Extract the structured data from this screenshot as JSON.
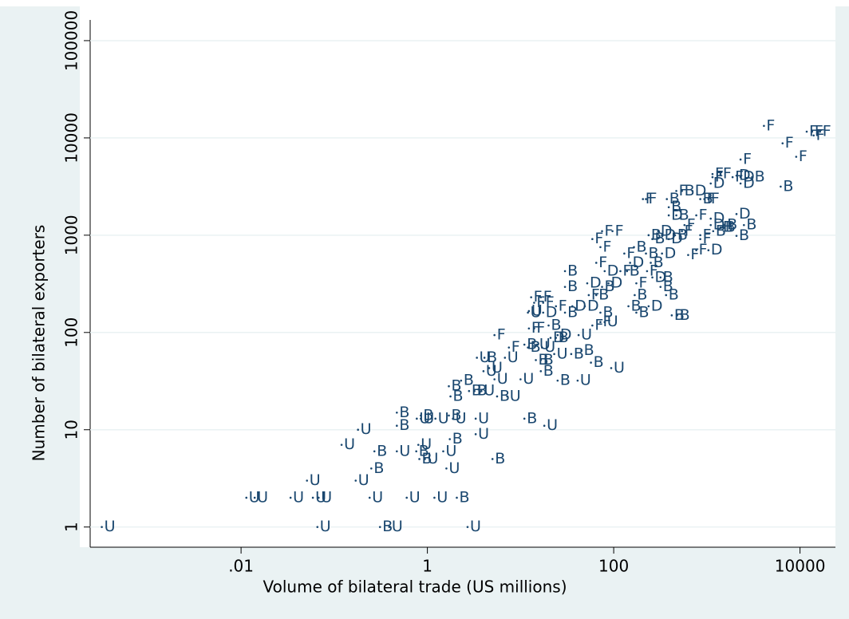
{
  "chart_data": {
    "type": "scatter",
    "x_label": "Volume of bilateral trade (US millions)",
    "y_label": "Number of bilateral exporters",
    "x_scale": "log",
    "y_scale": "log",
    "grid": true,
    "xlim": [
      0.00024,
      24000
    ],
    "ylim": [
      0.62,
      225000
    ],
    "xticks": [
      {
        "value": 0.01,
        "label": ".01"
      },
      1,
      100,
      10000
    ],
    "yticks": [
      1,
      10,
      100,
      1000,
      10000,
      100000
    ],
    "series": [
      {
        "name": "U",
        "color": "#1a476f",
        "x": [
          0.00032,
          0.066,
          0.39,
          2.7,
          0.0114,
          0.014,
          0.034,
          0.059,
          0.068,
          0.24,
          0.6,
          1.19,
          0.051,
          0.17,
          1.6,
          0.94,
          0.47,
          1.48,
          0.12,
          0.8,
          3.3,
          0.18,
          18,
          0.77,
          0.85,
          1.22,
          1.88,
          3.3,
          7.2,
          3.8,
          41,
          5.25,
          10,
          4.0,
          94,
          4.6,
          3.4,
          6.8,
          23,
          17,
          15,
          42,
          80,
          12,
          12.3
        ],
        "y": [
          1,
          1,
          1,
          1,
          2,
          2,
          2,
          2,
          2,
          2,
          2,
          2,
          3,
          3,
          4,
          5,
          6,
          6,
          7,
          7,
          9,
          10,
          11,
          13,
          13,
          13,
          13,
          13,
          22,
          25,
          32,
          33,
          33,
          40,
          43,
          43,
          55,
          55,
          60,
          70,
          75,
          94,
          128,
          160,
          166
        ]
      },
      {
        "name": "B",
        "color": "#1a476f",
        "x": [
          0.31,
          2.07,
          0.25,
          0.82,
          5.0,
          0.27,
          0.76,
          1.74,
          0.47,
          11,
          0.85,
          1.7,
          0.47,
          1.77,
          5.6,
          2.8,
          3.2,
          1.7,
          2.3,
          25,
          16.5,
          57,
          14.6,
          16.5,
          4.1,
          35,
          45,
          12,
          11,
          24,
          20,
          30,
          72,
          175,
          144,
          65,
          168,
          365,
          30,
          75,
          318,
          318,
          30,
          139,
          250,
          222,
          165,
          260,
          237,
          455,
          1170,
          1550,
          2500,
          470,
          390,
          372,
          850,
          540,
          3060,
          6200,
          1400,
          1480,
          2080,
          420,
          480
        ],
        "y": [
          1,
          2,
          4,
          5,
          5,
          6,
          6,
          8,
          11,
          13,
          14,
          14,
          15,
          22,
          22,
          25,
          25,
          28,
          32,
          32,
          40,
          49,
          52,
          52,
          55,
          60,
          65,
          70,
          75,
          88,
          118,
          160,
          160,
          160,
          186,
          242,
          242,
          242,
          294,
          294,
          294,
          368,
          427,
          427,
          520,
          648,
          754,
          912,
          1000,
          1000,
          1100,
          1270,
          1270,
          1600,
          1940,
          2350,
          2350,
          2850,
          3950,
          3160,
          1200,
          1200,
          985,
          150,
          150
        ]
      },
      {
        "name": "D",
        "color": "#1a476f",
        "x": [
          21,
          25,
          17.5,
          36,
          49,
          237,
          52,
          88,
          260,
          80,
          150,
          330,
          390,
          330,
          300,
          1100,
          390,
          2080,
          700,
          1100,
          2300,
          2300,
          1040,
          1100,
          2080
        ],
        "y": [
          88,
          94,
          160,
          186,
          186,
          186,
          320,
          320,
          368,
          427,
          520,
          648,
          912,
          1000,
          1100,
          1270,
          1600,
          1650,
          2850,
          3400,
          3400,
          3950,
          700,
          1480,
          4100
        ]
      },
      {
        "name": "F",
        "color": "#1a476f",
        "x": [
          7.5,
          5.25,
          12.3,
          14,
          59,
          72,
          24,
          14,
          17.5,
          13,
          16.5,
          54,
          175,
          118,
          228,
          65,
          130,
          72,
          59,
          850,
          850,
          75,
          97,
          540,
          575,
          770,
          206,
          222,
          1040,
          940,
          470,
          1150,
          1890,
          1150,
          1400,
          2300,
          9100,
          6500,
          4100,
          11800,
          13500,
          16400,
          14000,
          630,
          770
        ],
        "y": [
          70,
          94,
          110,
          110,
          118,
          128,
          186,
          202,
          202,
          230,
          230,
          242,
          320,
          427,
          427,
          520,
          648,
          754,
          912,
          912,
          1000,
          1100,
          1100,
          1100,
          1270,
          1600,
          2350,
          2350,
          2350,
          2350,
          2850,
          3950,
          3950,
          4250,
          4250,
          6000,
          6400,
          8800,
          13300,
          11600,
          11600,
          11600,
          10600,
          626,
          700
        ]
      }
    ]
  }
}
